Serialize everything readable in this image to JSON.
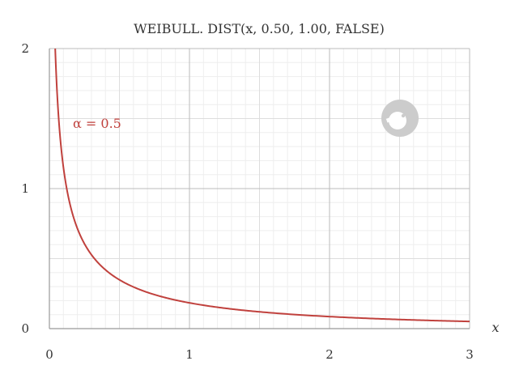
{
  "chart_data": {
    "type": "line",
    "title": "WEIBULL. DIST(x, 0.50, 1.00, FALSE)",
    "xlabel": "x",
    "ylabel": "",
    "xlim": [
      0,
      3
    ],
    "ylim": [
      0,
      2
    ],
    "x_ticks": [
      0,
      1,
      2,
      3
    ],
    "x_tick_labels": [
      "0",
      "1",
      "2",
      "3"
    ],
    "y_ticks": [
      0,
      1,
      2
    ],
    "y_tick_labels": [
      "0",
      "1",
      "2"
    ],
    "x_minor_step": 0.1,
    "y_minor_step": 0.1,
    "grid": true,
    "legend": "none",
    "series": [
      {
        "name": "α = 0.5",
        "color": "#c0413d",
        "shape": 0.5,
        "scale": 1.0,
        "x": [
          0.0625,
          0.1,
          0.15,
          0.2,
          0.3,
          0.4,
          0.5,
          0.75,
          1.0,
          1.25,
          1.5,
          2.0,
          2.5,
          3.0
        ],
        "y": [
          1.558,
          1.152,
          0.882,
          0.714,
          0.526,
          0.42,
          0.348,
          0.243,
          0.184,
          0.146,
          0.12,
          0.086,
          0.065,
          0.051
        ]
      }
    ]
  },
  "watermark": {
    "icon": "geogebra-logo-icon",
    "color": "#cccccc"
  }
}
